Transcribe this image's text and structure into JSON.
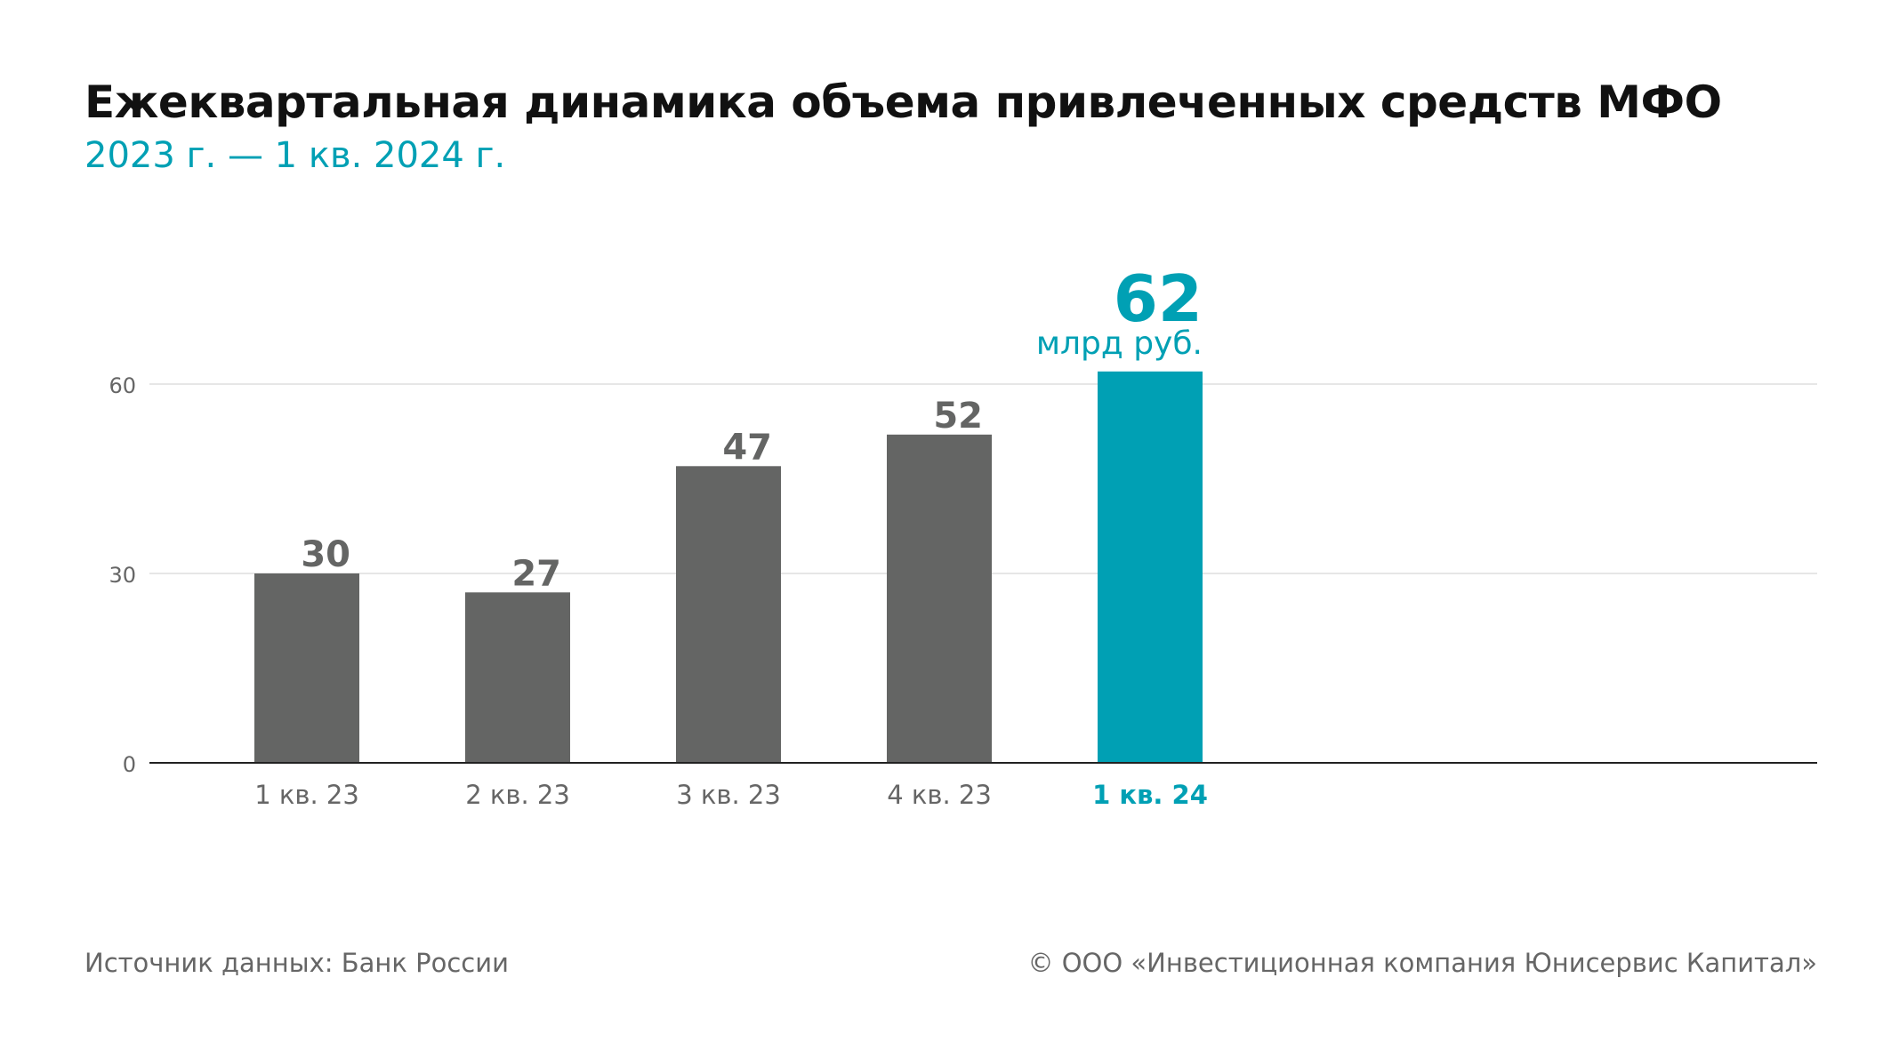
{
  "header": {
    "title": "Ежеквартальная динамика объема привлеченных средств МФО",
    "subtitle": "2023 г. — 1 кв. 2024 г."
  },
  "footer": {
    "source": "Источник данных: Банк России",
    "copyright": "© ООО «Инвестиционная компания Юнисервис Капитал»"
  },
  "colors": {
    "bar": "#646564",
    "highlight": "#00a0b4",
    "grid": "#e6e6e6",
    "axis": "#222222",
    "tick": "#666666"
  },
  "chart_data": {
    "type": "bar",
    "title": "Ежеквартальная динамика объема привлеченных средств МФО",
    "subtitle": "2023 г. — 1 кв. 2024 г.",
    "categories": [
      "1 кв. 23",
      "2 кв. 23",
      "3 кв. 23",
      "4 кв. 23",
      "1 кв. 24"
    ],
    "values": [
      30,
      27,
      47,
      52,
      62
    ],
    "data_labels": [
      "30",
      "27",
      "47",
      "52",
      "62"
    ],
    "highlight_index": 4,
    "highlight_unit": "млрд руб.",
    "yticks": [
      0,
      30,
      60
    ],
    "ylim": [
      0,
      62
    ],
    "grid": true,
    "xlabel": "",
    "ylabel": ""
  }
}
